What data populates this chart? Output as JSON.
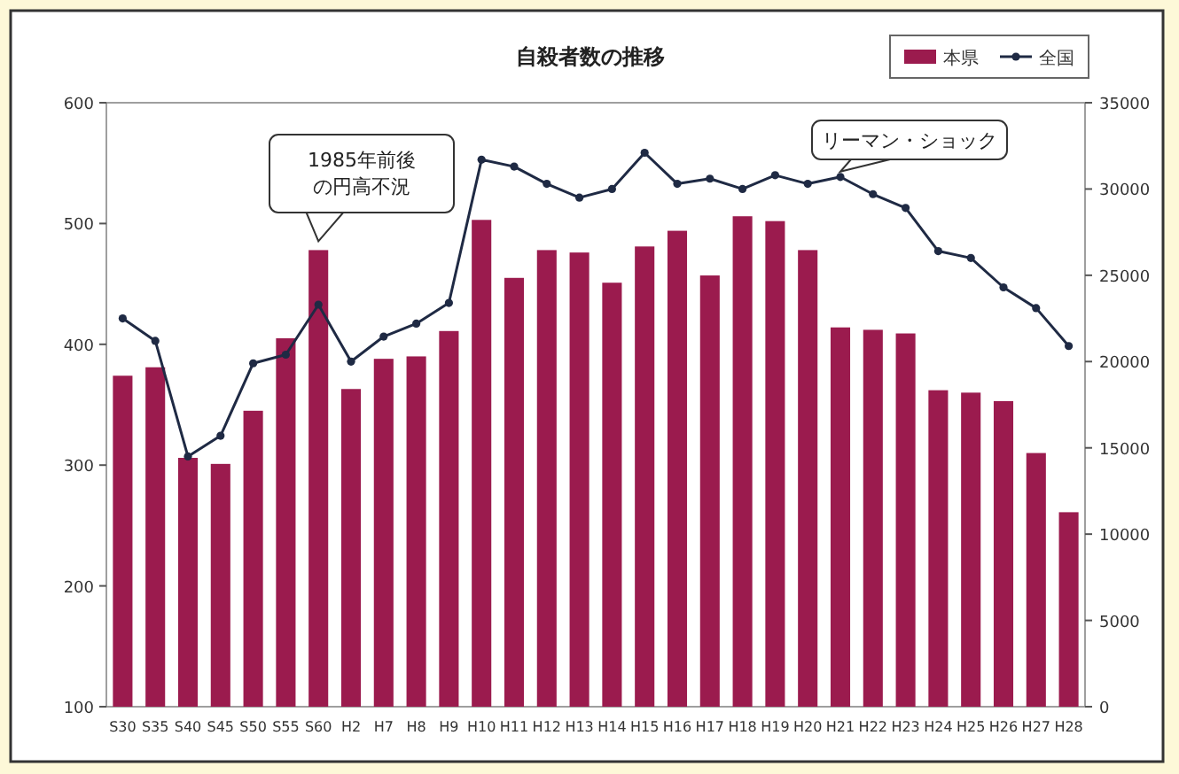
{
  "chart_data": {
    "type": "bar",
    "title": "自殺者数の推移",
    "categories": [
      "S30",
      "S35",
      "S40",
      "S45",
      "S50",
      "S55",
      "S60",
      "H2",
      "H7",
      "H8",
      "H9",
      "H10",
      "H11",
      "H12",
      "H13",
      "H14",
      "H15",
      "H16",
      "H17",
      "H18",
      "H19",
      "H20",
      "H21",
      "H22",
      "H23",
      "H24",
      "H25",
      "H26",
      "H27",
      "H28"
    ],
    "series": [
      {
        "name": "本県",
        "color": "#9b1b4e",
        "values": [
          374,
          381,
          306,
          301,
          345,
          405,
          478,
          363,
          388,
          390,
          411,
          503,
          455,
          478,
          476,
          451,
          481,
          494,
          457,
          506,
          502,
          478,
          414,
          412,
          409,
          362,
          360,
          353,
          310,
          261
        ]
      },
      {
        "name": "全国",
        "type": "line",
        "axis": "y2",
        "color": "#1f2a44",
        "marker": "circle",
        "values": [
          22500,
          21200,
          14500,
          15700,
          19900,
          20400,
          23300,
          20000,
          21450,
          22200,
          23400,
          31700,
          31300,
          30300,
          29500,
          30000,
          32100,
          30300,
          30600,
          30000,
          30800,
          30300,
          30700,
          29700,
          28900,
          26400,
          26000,
          24300,
          23100,
          20900
        ]
      }
    ],
    "ylim": [
      100,
      600
    ],
    "yticks": [
      100,
      200,
      300,
      400,
      500,
      600
    ],
    "y2lim": [
      0,
      35000
    ],
    "y2ticks": [
      0,
      5000,
      10000,
      15000,
      20000,
      25000,
      30000,
      35000
    ],
    "legend": "top right",
    "annotations": [
      "1985年前後の円高不況",
      "リーマン・ショック"
    ]
  }
}
